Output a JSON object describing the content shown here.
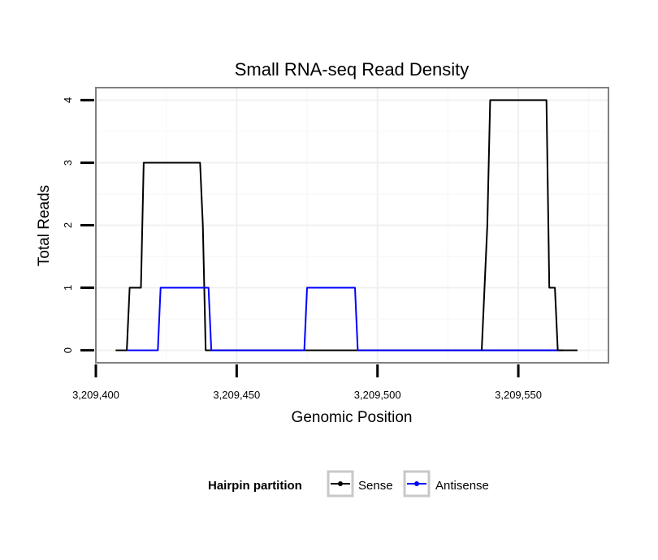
{
  "chart_data": {
    "type": "line",
    "title": "Small RNA-seq Read Density",
    "xlabel": "Genomic Position",
    "ylabel": "Total Reads",
    "xlim": [
      3209400,
      3209582
    ],
    "ylim": [
      -0.2,
      4.2
    ],
    "x_ticks": [
      3209400,
      3209450,
      3209500,
      3209550
    ],
    "x_tick_labels": [
      "3,209,400",
      "3,209,450",
      "3,209,500",
      "3,209,550"
    ],
    "y_ticks": [
      0,
      1,
      2,
      3,
      4
    ],
    "y_tick_labels": [
      "0",
      "1",
      "2",
      "3",
      "4"
    ],
    "grid": true,
    "legend": {
      "title": "Hairpin partition",
      "position": "bottom"
    },
    "series": [
      {
        "name": "Sense",
        "color": "#000000",
        "x": [
          3209407,
          3209411,
          3209412,
          3209416,
          3209417,
          3209437,
          3209438,
          3209439,
          3209571
        ],
        "y": [
          0,
          0,
          1,
          1,
          3,
          3,
          2,
          0,
          0
        ]
      },
      {
        "name": "Antisense",
        "color": "#0000ff",
        "x": [
          3209411,
          3209422,
          3209423,
          3209440,
          3209441,
          3209474,
          3209475,
          3209492,
          3209493,
          3209564
        ],
        "y": [
          0,
          0,
          1,
          1,
          0,
          0,
          1,
          1,
          0,
          0
        ]
      },
      {
        "name": "Sense",
        "color": "#000000",
        "x": [
          3209537,
          3209539,
          3209540,
          3209560,
          3209561,
          3209563,
          3209564,
          3209566
        ],
        "y": [
          0,
          2,
          4,
          4,
          1,
          1,
          0,
          0
        ]
      }
    ]
  }
}
